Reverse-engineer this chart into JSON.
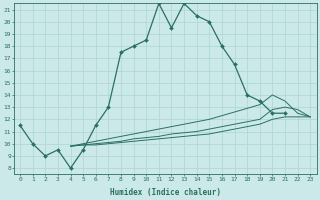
{
  "xlabel": "Humidex (Indice chaleur)",
  "xlim": [
    -0.5,
    23.5
  ],
  "ylim": [
    7.5,
    21.5
  ],
  "xticks": [
    0,
    1,
    2,
    3,
    4,
    5,
    6,
    7,
    8,
    9,
    10,
    11,
    12,
    13,
    14,
    15,
    16,
    17,
    18,
    19,
    20,
    21,
    22,
    23
  ],
  "yticks": [
    8,
    9,
    10,
    11,
    12,
    13,
    14,
    15,
    16,
    17,
    18,
    19,
    20,
    21
  ],
  "bg_color": "#cce9e9",
  "grid_color": "#b0d8d8",
  "line_color": "#2a7060",
  "main_line": {
    "x": [
      0,
      1,
      2,
      3,
      4,
      5,
      6,
      7,
      8,
      9,
      10,
      11,
      12,
      13,
      14,
      15,
      16,
      17,
      18,
      19,
      20,
      21,
      22
    ],
    "y": [
      11.5,
      10.0,
      9.0,
      9.5,
      8.0,
      9.5,
      11.5,
      13.0,
      17.5,
      18.0,
      18.5,
      21.5,
      19.5,
      21.5,
      20.5,
      20.0,
      18.0,
      16.5,
      14.0,
      13.5,
      12.5,
      12.5,
      null
    ]
  },
  "fan_lines": [
    {
      "x": [
        4,
        5,
        6,
        7,
        8,
        9,
        10,
        11,
        12,
        13,
        14,
        15,
        16,
        17,
        18,
        19,
        20,
        21,
        22,
        23
      ],
      "y": [
        9.8,
        10.0,
        10.2,
        10.4,
        10.6,
        10.8,
        11.0,
        11.2,
        11.4,
        11.6,
        11.8,
        12.0,
        12.3,
        12.6,
        12.9,
        13.2,
        14.0,
        13.5,
        12.5,
        12.2
      ]
    },
    {
      "x": [
        4,
        5,
        6,
        7,
        8,
        9,
        10,
        11,
        12,
        13,
        14,
        15,
        16,
        17,
        18,
        19,
        20,
        21,
        22,
        23
      ],
      "y": [
        9.8,
        9.9,
        10.0,
        10.1,
        10.2,
        10.4,
        10.5,
        10.6,
        10.8,
        10.9,
        11.0,
        11.2,
        11.4,
        11.6,
        11.8,
        12.0,
        12.8,
        13.0,
        12.8,
        12.2
      ]
    },
    {
      "x": [
        4,
        5,
        6,
        7,
        8,
        9,
        10,
        11,
        12,
        13,
        14,
        15,
        16,
        17,
        18,
        19,
        20,
        21,
        22,
        23
      ],
      "y": [
        9.8,
        9.9,
        9.9,
        10.0,
        10.1,
        10.2,
        10.3,
        10.4,
        10.5,
        10.6,
        10.7,
        10.8,
        11.0,
        11.2,
        11.4,
        11.6,
        12.0,
        12.2,
        12.2,
        12.2
      ]
    }
  ]
}
